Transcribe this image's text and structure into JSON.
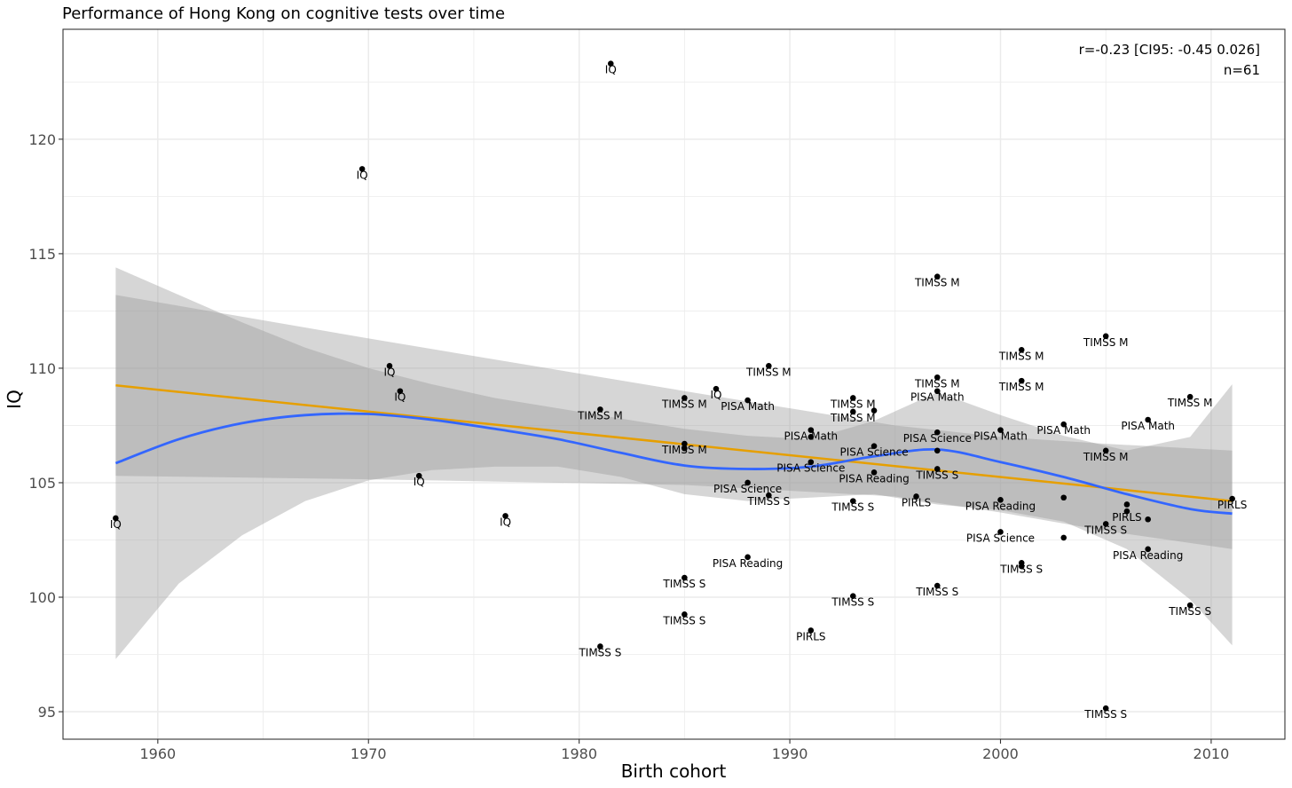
{
  "chart_data": {
    "type": "scatter",
    "title": "Performance of Hong Kong on cognitive tests over time",
    "xlabel": "Birth cohort",
    "ylabel": "IQ",
    "xlim": [
      1955.5,
      2013.5
    ],
    "ylim": [
      93.8,
      124.8
    ],
    "x_ticks": [
      1960,
      1970,
      1980,
      1990,
      2000,
      2010
    ],
    "y_ticks": [
      95,
      100,
      105,
      110,
      115,
      120
    ],
    "grid": true,
    "annotations": [
      "r=-0.23 [CI95: -0.45 0.026]",
      "n=61"
    ],
    "colors": {
      "linear_fit": "#e69f00",
      "loess_fit": "#3366ff",
      "ribbon": "#999999",
      "points": "#000000",
      "panel_border": "#333333",
      "grid": "#ebebeb"
    },
    "points": [
      {
        "x": 1958.0,
        "y": 103.45,
        "label": "IQ"
      },
      {
        "x": 1969.7,
        "y": 118.7,
        "label": "IQ"
      },
      {
        "x": 1971.0,
        "y": 110.1,
        "label": "IQ"
      },
      {
        "x": 1971.5,
        "y": 109.0,
        "label": "IQ"
      },
      {
        "x": 1972.4,
        "y": 105.3,
        "label": "IQ"
      },
      {
        "x": 1976.5,
        "y": 103.55,
        "label": "IQ"
      },
      {
        "x": 1981.0,
        "y": 97.85,
        "label": "TIMSS S"
      },
      {
        "x": 1981.0,
        "y": 108.2,
        "label": "TIMSS M"
      },
      {
        "x": 1981.5,
        "y": 123.3,
        "label": "IQ"
      },
      {
        "x": 1985.0,
        "y": 108.7,
        "label": "TIMSS M"
      },
      {
        "x": 1985.0,
        "y": 106.7,
        "label": "TIMSS M"
      },
      {
        "x": 1985.0,
        "y": 100.85,
        "label": "TIMSS S"
      },
      {
        "x": 1985.0,
        "y": 99.25,
        "label": "TIMSS S"
      },
      {
        "x": 1986.5,
        "y": 109.1,
        "label": "IQ"
      },
      {
        "x": 1988.0,
        "y": 108.6,
        "label": "PISA Math"
      },
      {
        "x": 1988.0,
        "y": 105.0,
        "label": "PISA Science"
      },
      {
        "x": 1988.0,
        "y": 101.75,
        "label": "PISA Reading"
      },
      {
        "x": 1989.0,
        "y": 110.1,
        "label": "TIMSS M"
      },
      {
        "x": 1989.0,
        "y": 104.45,
        "label": "TIMSS S"
      },
      {
        "x": 1991.0,
        "y": 107.3,
        "label": "PISA Math"
      },
      {
        "x": 1991.0,
        "y": 105.9,
        "label": "PISA Science"
      },
      {
        "x": 1991.0,
        "y": 98.55,
        "label": "PIRLS"
      },
      {
        "x": 1993.0,
        "y": 108.7,
        "label": "TIMSS M"
      },
      {
        "x": 1993.0,
        "y": 108.1,
        "label": "TIMSS M"
      },
      {
        "x": 1993.0,
        "y": 104.2,
        "label": "TIMSS S"
      },
      {
        "x": 1993.0,
        "y": 100.05,
        "label": "TIMSS S"
      },
      {
        "x": 1994.0,
        "y": 106.6,
        "label": "PISA Science"
      },
      {
        "x": 1994.0,
        "y": 105.45,
        "label": "PISA Reading"
      },
      {
        "x": 1996.0,
        "y": 104.4,
        "label": "PIRLS"
      },
      {
        "x": 1997.0,
        "y": 114.0,
        "label": "TIMSS M"
      },
      {
        "x": 1997.0,
        "y": 109.6,
        "label": "TIMSS M"
      },
      {
        "x": 1997.0,
        "y": 109.0,
        "label": "PISA Math"
      },
      {
        "x": 1997.0,
        "y": 107.2,
        "label": "PISA Science"
      },
      {
        "x": 1997.0,
        "y": 105.6,
        "label": "TIMSS S"
      },
      {
        "x": 1997.0,
        "y": 100.5,
        "label": "TIMSS S"
      },
      {
        "x": 2000.0,
        "y": 107.3,
        "label": "PISA Math"
      },
      {
        "x": 2000.0,
        "y": 104.25,
        "label": "PISA Reading"
      },
      {
        "x": 2000.0,
        "y": 102.85,
        "label": "PISA Science"
      },
      {
        "x": 2001.0,
        "y": 110.8,
        "label": "TIMSS M"
      },
      {
        "x": 2001.0,
        "y": 109.45,
        "label": "TIMSS M"
      },
      {
        "x": 2001.0,
        "y": 101.5,
        "label": "TIMSS S"
      },
      {
        "x": 2003.0,
        "y": 107.55,
        "label": "PISA Math"
      },
      {
        "x": 2005.0,
        "y": 111.4,
        "label": "TIMSS M"
      },
      {
        "x": 2005.0,
        "y": 106.4,
        "label": "TIMSS M"
      },
      {
        "x": 2005.0,
        "y": 103.2,
        "label": "TIMSS S"
      },
      {
        "x": 2005.0,
        "y": 95.15,
        "label": "TIMSS S"
      },
      {
        "x": 2006.0,
        "y": 103.75,
        "label": "PIRLS"
      },
      {
        "x": 2007.0,
        "y": 107.75,
        "label": "PISA Math"
      },
      {
        "x": 2007.0,
        "y": 102.1,
        "label": "PISA Reading"
      },
      {
        "x": 2009.0,
        "y": 108.75,
        "label": "TIMSS M"
      },
      {
        "x": 2009.0,
        "y": 99.65,
        "label": "TIMSS S"
      },
      {
        "x": 2011.0,
        "y": 104.3,
        "label": "PIRLS"
      },
      {
        "x": 1994.0,
        "y": 108.15,
        "label": ""
      },
      {
        "x": 1997.0,
        "y": 106.4,
        "label": ""
      },
      {
        "x": 2003.0,
        "y": 104.35,
        "label": ""
      },
      {
        "x": 2003.0,
        "y": 102.6,
        "label": ""
      },
      {
        "x": 2006.0,
        "y": 104.05,
        "label": ""
      },
      {
        "x": 2007.0,
        "y": 103.4,
        "label": ""
      },
      {
        "x": 1991.0,
        "y": 107.0,
        "label": ""
      },
      {
        "x": 2001.0,
        "y": 101.35,
        "label": ""
      },
      {
        "x": 1985.0,
        "y": 106.5,
        "label": ""
      }
    ],
    "series": [
      {
        "type": "linear_fit",
        "x": [
          1958,
          2011
        ],
        "y": [
          109.25,
          104.2
        ]
      },
      {
        "type": "linear_fit_ci",
        "x": [
          1958,
          1970,
          1985,
          1995,
          2000,
          2005,
          2011
        ],
        "upper": [
          113.2,
          111.3,
          109.0,
          107.5,
          107.0,
          106.7,
          106.4
        ],
        "lower": [
          105.3,
          105.15,
          104.9,
          104.4,
          103.7,
          102.9,
          102.1
        ]
      },
      {
        "type": "loess_fit",
        "x": [
          1958,
          1961,
          1964,
          1967,
          1970,
          1973,
          1976,
          1979,
          1982,
          1985,
          1988,
          1991,
          1994,
          1997,
          2000,
          2003,
          2006,
          2009,
          2011
        ],
        "y": [
          105.85,
          106.9,
          107.6,
          107.95,
          108.0,
          107.75,
          107.35,
          106.9,
          106.3,
          105.75,
          105.6,
          105.7,
          106.15,
          106.45,
          105.9,
          105.25,
          104.5,
          103.85,
          103.65
        ]
      },
      {
        "type": "loess_fit_ci",
        "x": [
          1958,
          1961,
          1964,
          1967,
          1970,
          1973,
          1976,
          1979,
          1982,
          1985,
          1988,
          1991,
          1994,
          1997,
          2000,
          2003,
          2006,
          2009,
          2011
        ],
        "upper": [
          114.4,
          113.2,
          112.0,
          110.9,
          110.0,
          109.3,
          108.7,
          108.25,
          107.8,
          107.35,
          107.05,
          106.9,
          107.7,
          108.95,
          107.95,
          107.05,
          106.4,
          107.0,
          109.3
        ],
        "lower": [
          97.3,
          100.6,
          102.7,
          104.2,
          105.1,
          105.55,
          105.7,
          105.7,
          105.25,
          104.5,
          104.2,
          104.35,
          104.5,
          104.05,
          103.8,
          103.3,
          102.1,
          99.9,
          97.9
        ]
      }
    ]
  }
}
